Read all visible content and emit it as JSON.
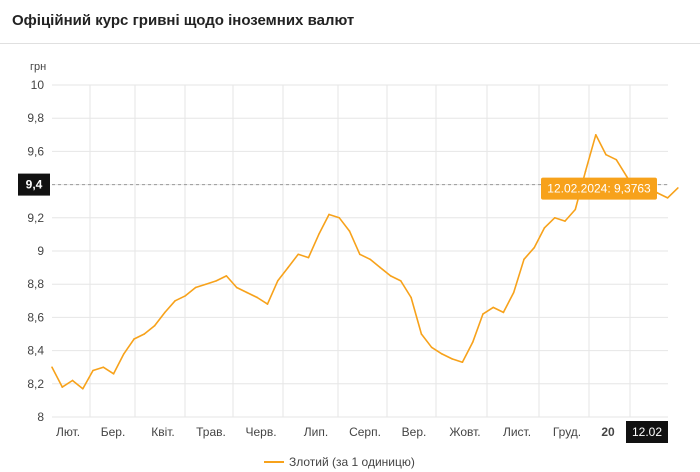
{
  "header": {
    "title": "Офіційний курс гривні щодо іноземних валют"
  },
  "chart_data": {
    "type": "line",
    "ylabel": "грн",
    "ylim": [
      8,
      10
    ],
    "yticks": [
      "8",
      "8,2",
      "8,4",
      "8,6",
      "8,8",
      "9",
      "9,2",
      "9,4",
      "9,6",
      "9,8",
      "10"
    ],
    "x_labels": [
      "Лют.",
      "Бер.",
      "Квіт.",
      "Трав.",
      "Черв.",
      "Лип.",
      "Серп.",
      "Вер.",
      "Жовт.",
      "Лист.",
      "Груд.",
      "20",
      "12.02"
    ],
    "grid": true,
    "legend_position": "bottom",
    "crosshair": {
      "y": 9.4,
      "y_label": "9,4",
      "x_label": "12.02",
      "tooltip": "12.02.2024: 9,3763"
    },
    "colors": {
      "line": "#f7a21b",
      "tooltip": "#f7a21b",
      "axis_label_bg": "#111111"
    },
    "series": [
      {
        "name": "Злотий (за 1 одиницю)",
        "months": [
          0,
          0.2,
          0.4,
          0.6,
          0.8,
          1.0,
          1.2,
          1.4,
          1.6,
          1.8,
          2.0,
          2.2,
          2.4,
          2.6,
          2.8,
          3.0,
          3.2,
          3.4,
          3.6,
          3.8,
          4.0,
          4.2,
          4.4,
          4.6,
          4.8,
          5.0,
          5.2,
          5.4,
          5.6,
          5.8,
          6.0,
          6.2,
          6.4,
          6.6,
          6.8,
          7.0,
          7.2,
          7.4,
          7.6,
          7.8,
          8.0,
          8.2,
          8.4,
          8.6,
          8.8,
          9.0,
          9.2,
          9.4,
          9.6,
          9.8,
          10.0,
          10.2,
          10.4,
          10.6,
          10.8,
          11.0,
          11.2,
          11.4,
          11.6,
          11.8,
          12.0,
          12.2
        ],
        "values": [
          8.3,
          8.18,
          8.22,
          8.17,
          8.28,
          8.3,
          8.26,
          8.38,
          8.47,
          8.5,
          8.55,
          8.63,
          8.7,
          8.73,
          8.78,
          8.8,
          8.82,
          8.85,
          8.78,
          8.75,
          8.72,
          8.68,
          8.82,
          8.9,
          8.98,
          8.96,
          9.1,
          9.22,
          9.2,
          9.12,
          8.98,
          8.95,
          8.9,
          8.85,
          8.82,
          8.72,
          8.5,
          8.42,
          8.38,
          8.35,
          8.33,
          8.45,
          8.62,
          8.66,
          8.63,
          8.75,
          8.95,
          9.02,
          9.14,
          9.2,
          9.18,
          9.25,
          9.48,
          9.7,
          9.58,
          9.55,
          9.45,
          9.35,
          9.4,
          9.35,
          9.32,
          9.38
        ]
      }
    ]
  }
}
